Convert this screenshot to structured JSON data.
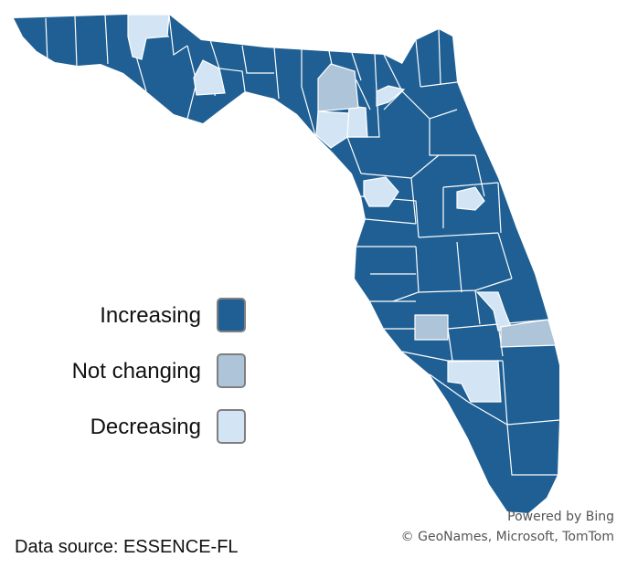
{
  "legend": {
    "items": [
      {
        "key": "increasing",
        "label": "Increasing",
        "color": "#1f5f93"
      },
      {
        "key": "not_changing",
        "label": "Not changing",
        "color": "#adc4d9"
      },
      {
        "key": "decreasing",
        "label": "Decreasing",
        "color": "#d3e5f4"
      }
    ]
  },
  "attribution": {
    "powered_by": "Powered by Bing",
    "copyright": "© GeoNames, Microsoft, TomTom"
  },
  "data_source": "Data source: ESSENCE-FL",
  "colors": {
    "increasing": "#1f5f93",
    "not_changing": "#adc4d9",
    "decreasing": "#d3e5f4",
    "county_border": "#ffffff",
    "swatch_border": "#7f7f7f"
  }
}
